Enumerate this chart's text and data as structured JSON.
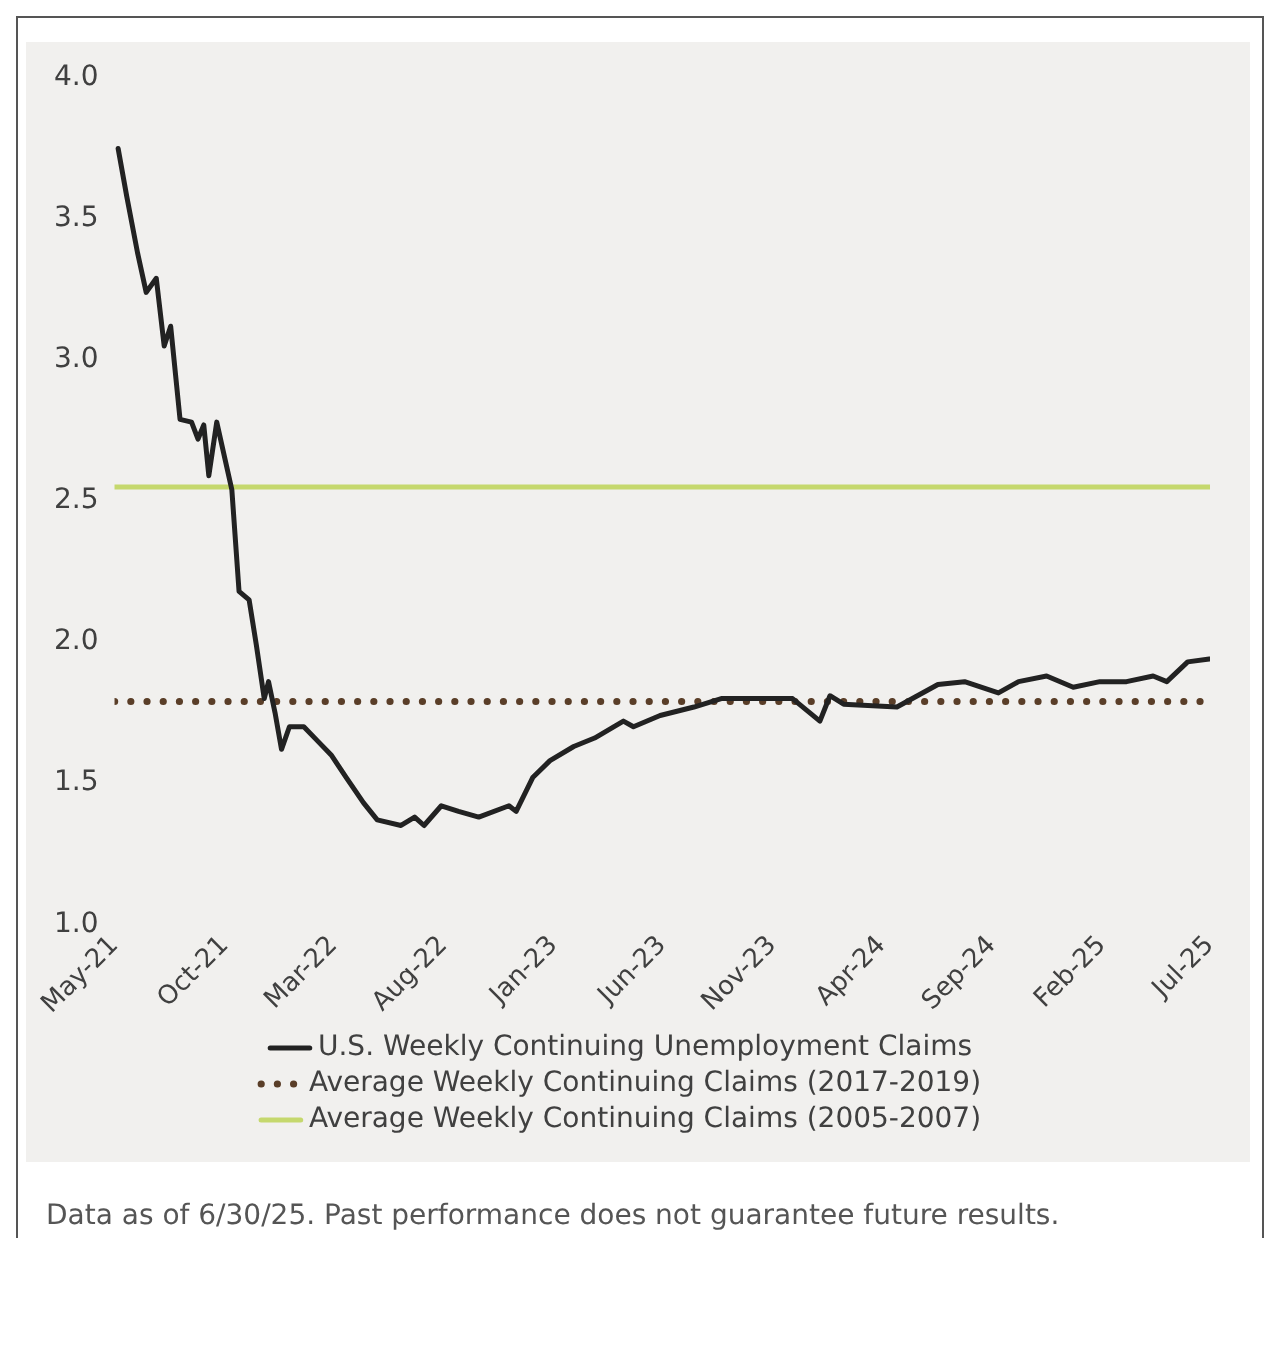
{
  "chart_data": {
    "type": "line",
    "legend": "bottom",
    "grid": false,
    "xlim": [
      "2021-05",
      "2025-07"
    ],
    "xticks": [
      {
        "value": "2021-05",
        "label": "May-21"
      },
      {
        "value": "2021-10",
        "label": "Oct-21"
      },
      {
        "value": "2022-03",
        "label": "Mar-22"
      },
      {
        "value": "2022-08",
        "label": "Aug-22"
      },
      {
        "value": "2023-01",
        "label": "Jan-23"
      },
      {
        "value": "2023-06",
        "label": "Jun-23"
      },
      {
        "value": "2023-11",
        "label": "Nov-23"
      },
      {
        "value": "2024-04",
        "label": "Apr-24"
      },
      {
        "value": "2024-09",
        "label": "Sep-24"
      },
      {
        "value": "2025-02",
        "label": "Feb-25"
      },
      {
        "value": "2025-07",
        "label": "Jul-25"
      }
    ],
    "ylim": [
      1.0,
      4.0
    ],
    "yticks": [
      {
        "value": 1.0,
        "label": "1.0"
      },
      {
        "value": 1.5,
        "label": "1.5"
      },
      {
        "value": 2.0,
        "label": "2.0"
      },
      {
        "value": 2.5,
        "label": "2.5"
      },
      {
        "value": 3.0,
        "label": "3.0"
      },
      {
        "value": 3.5,
        "label": "3.5"
      },
      {
        "value": 4.0,
        "label": "4.0"
      }
    ],
    "series": [
      {
        "name": "U.S. Weekly Continuing Unemployment Claims",
        "color": "#222222",
        "line_style": "solid",
        "x": [
          "2021-05-06",
          "2021-05-18",
          "2021-06-02",
          "2021-06-14",
          "2021-06-28",
          "2021-07-09",
          "2021-07-18",
          "2021-07-31",
          "2021-08-16",
          "2021-08-25",
          "2021-09-02",
          "2021-09-09",
          "2021-09-20",
          "2021-10-11",
          "2021-10-21",
          "2021-11-04",
          "2021-11-14",
          "2021-11-25",
          "2021-12-01",
          "2021-12-10",
          "2021-12-19",
          "2021-12-30",
          "2022-01-19",
          "2022-02-07",
          "2022-02-26",
          "2022-03-19",
          "2022-04-12",
          "2022-05-01",
          "2022-06-03",
          "2022-06-22",
          "2022-07-05",
          "2022-07-29",
          "2022-08-22",
          "2022-09-19",
          "2022-10-31",
          "2022-11-10",
          "2022-12-03",
          "2022-12-27",
          "2023-01-29",
          "2023-02-27",
          "2023-04-08",
          "2023-04-22",
          "2023-05-29",
          "2023-07-15",
          "2023-08-22",
          "2023-10-18",
          "2023-11-29",
          "2024-01-06",
          "2024-01-20",
          "2024-02-08",
          "2024-04-22",
          "2024-06-18",
          "2024-07-25",
          "2024-09-10",
          "2024-10-08",
          "2024-11-16",
          "2024-12-23",
          "2025-01-29",
          "2025-03-07",
          "2025-04-13",
          "2025-05-02",
          "2025-05-31",
          "2025-06-30"
        ],
        "values": [
          3.75,
          3.58,
          3.38,
          3.24,
          3.29,
          3.05,
          3.12,
          2.79,
          2.78,
          2.72,
          2.77,
          2.59,
          2.78,
          2.54,
          2.18,
          2.15,
          1.99,
          1.8,
          1.86,
          1.75,
          1.62,
          1.7,
          1.7,
          1.65,
          1.6,
          1.52,
          1.43,
          1.37,
          1.35,
          1.38,
          1.35,
          1.42,
          1.4,
          1.38,
          1.42,
          1.4,
          1.52,
          1.58,
          1.63,
          1.66,
          1.72,
          1.7,
          1.74,
          1.77,
          1.8,
          1.8,
          1.8,
          1.72,
          1.81,
          1.78,
          1.77,
          1.85,
          1.86,
          1.82,
          1.86,
          1.88,
          1.84,
          1.86,
          1.86,
          1.88,
          1.86,
          1.93,
          1.94
        ]
      },
      {
        "name": "Average Weekly Continuing Claims (2017-2019)",
        "color": "#5a3e28",
        "line_style": "dotted",
        "x": [
          "2021-05",
          "2025-07"
        ],
        "values": [
          1.79,
          1.79
        ]
      },
      {
        "name": "Average Weekly Continuing Claims (2005-2007)",
        "color": "#c5d86d",
        "line_style": "solid",
        "x": [
          "2021-05",
          "2025-07"
        ],
        "values": [
          2.55,
          2.55
        ]
      }
    ],
    "annotations": [
      "Data as of 6/30/25. Past performance does not guarantee future results."
    ]
  }
}
